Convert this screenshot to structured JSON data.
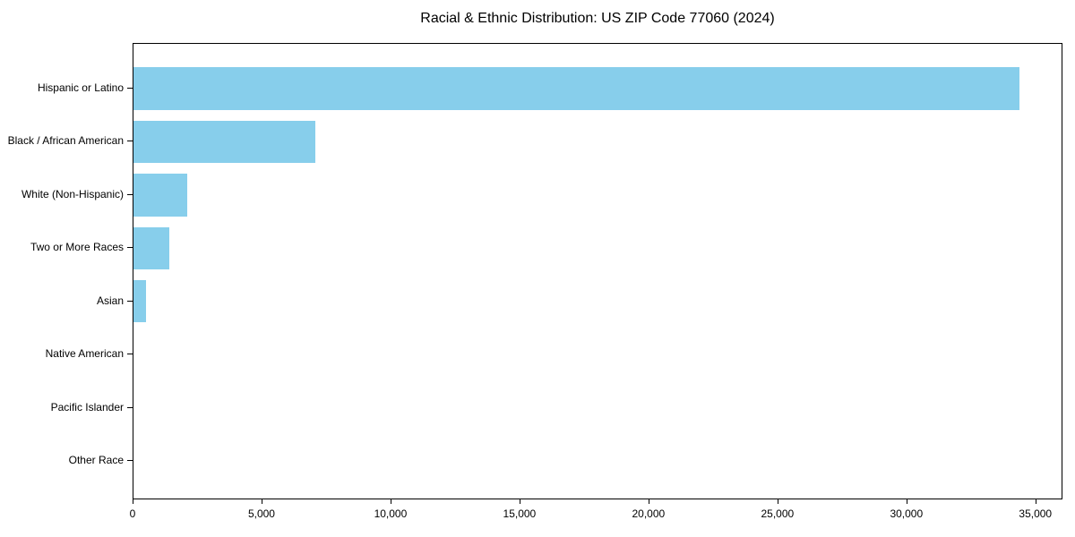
{
  "title": "Racial & Ethnic Distribution: US ZIP Code 77060 (2024)",
  "chart_data": {
    "type": "bar",
    "orientation": "horizontal",
    "title": "Racial & Ethnic Distribution: US ZIP Code 77060 (2024)",
    "xlabel": "",
    "ylabel": "",
    "categories": [
      "Hispanic or Latino",
      "Black / African American",
      "White (Non-Hispanic)",
      "Two or More Races",
      "Asian",
      "Native American",
      "Pacific Islander",
      "Other Race"
    ],
    "values": [
      34350,
      7050,
      2080,
      1390,
      490,
      0,
      0,
      0
    ],
    "xlim": [
      0,
      36050
    ],
    "xticks": [
      0,
      5000,
      10000,
      15000,
      20000,
      25000,
      30000,
      35000
    ],
    "xtick_labels": [
      "0",
      "5,000",
      "10,000",
      "15,000",
      "20,000",
      "25,000",
      "30,000",
      "35,000"
    ],
    "grid": false,
    "legend": null,
    "bar_color": "#87CEEB",
    "frame_color": "#000000",
    "background_color": "#ffffff"
  }
}
